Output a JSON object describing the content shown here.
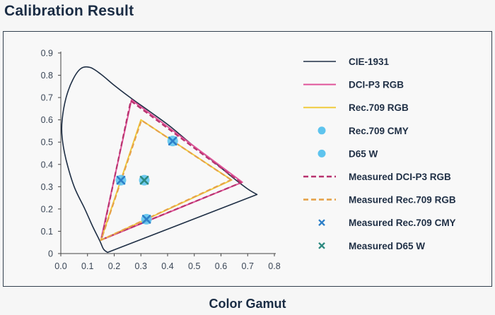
{
  "title": "Calibration Result",
  "caption": "Color Gamut",
  "chart_data": {
    "type": "scatter",
    "xlim": [
      0.0,
      0.8
    ],
    "ylim": [
      0.0,
      0.9
    ],
    "x_ticks": [
      "0.0",
      "0.1",
      "0.2",
      "0.3",
      "0.4",
      "0.5",
      "0.6",
      "0.7",
      "0.8"
    ],
    "y_ticks": [
      "0",
      "0.1",
      "0.2",
      "0.3",
      "0.4",
      "0.5",
      "0.6",
      "0.7",
      "0.8",
      "0.9"
    ],
    "grid": false,
    "legend_position": "right",
    "series": [
      {
        "name": "CIE-1931",
        "style": "solid-line",
        "color": "#1f2f45",
        "closed": true,
        "points": [
          [
            0.175,
            0.005
          ],
          [
            0.16,
            0.02
          ],
          [
            0.145,
            0.06
          ],
          [
            0.12,
            0.12
          ],
          [
            0.09,
            0.2
          ],
          [
            0.05,
            0.3
          ],
          [
            0.02,
            0.42
          ],
          [
            0.005,
            0.52
          ],
          [
            0.005,
            0.6
          ],
          [
            0.02,
            0.7
          ],
          [
            0.045,
            0.78
          ],
          [
            0.075,
            0.83
          ],
          [
            0.11,
            0.835
          ],
          [
            0.15,
            0.805
          ],
          [
            0.2,
            0.755
          ],
          [
            0.26,
            0.7
          ],
          [
            0.33,
            0.64
          ],
          [
            0.41,
            0.57
          ],
          [
            0.49,
            0.49
          ],
          [
            0.57,
            0.415
          ],
          [
            0.64,
            0.345
          ],
          [
            0.7,
            0.29
          ],
          [
            0.735,
            0.265
          ]
        ]
      },
      {
        "name": "DCI-P3 RGB",
        "style": "solid-line",
        "color": "#e0559a",
        "closed": true,
        "points": [
          [
            0.68,
            0.32
          ],
          [
            0.265,
            0.69
          ],
          [
            0.15,
            0.06
          ]
        ]
      },
      {
        "name": "Rec.709 RGB",
        "style": "solid-line",
        "color": "#f0cb3c",
        "closed": true,
        "points": [
          [
            0.64,
            0.33
          ],
          [
            0.3,
            0.6
          ],
          [
            0.15,
            0.06
          ]
        ]
      },
      {
        "name": "Rec.709 CMY",
        "style": "circle",
        "color": "#5ec4ee",
        "points": [
          [
            0.225,
            0.329
          ],
          [
            0.321,
            0.154
          ],
          [
            0.419,
            0.505
          ]
        ]
      },
      {
        "name": "D65 W",
        "style": "circle",
        "color": "#5ec4ee",
        "points": [
          [
            0.3127,
            0.329
          ]
        ]
      },
      {
        "name": "Measured DCI-P3 RGB",
        "style": "dashed-line",
        "color": "#b8336e",
        "closed": true,
        "points": [
          [
            0.675,
            0.318
          ],
          [
            0.262,
            0.685
          ],
          [
            0.152,
            0.062
          ]
        ]
      },
      {
        "name": "Measured Rec.709 RGB",
        "style": "dashed-line",
        "color": "#e6a24a",
        "closed": true,
        "points": [
          [
            0.638,
            0.331
          ],
          [
            0.302,
            0.598
          ],
          [
            0.151,
            0.061
          ]
        ]
      },
      {
        "name": "Measured Rec.709 CMY",
        "style": "x",
        "color": "#2d7fc8",
        "points": [
          [
            0.225,
            0.329
          ],
          [
            0.321,
            0.154
          ],
          [
            0.419,
            0.505
          ]
        ]
      },
      {
        "name": "Measured D65 W",
        "style": "x",
        "color": "#2d8a80",
        "points": [
          [
            0.3127,
            0.329
          ]
        ]
      }
    ]
  }
}
